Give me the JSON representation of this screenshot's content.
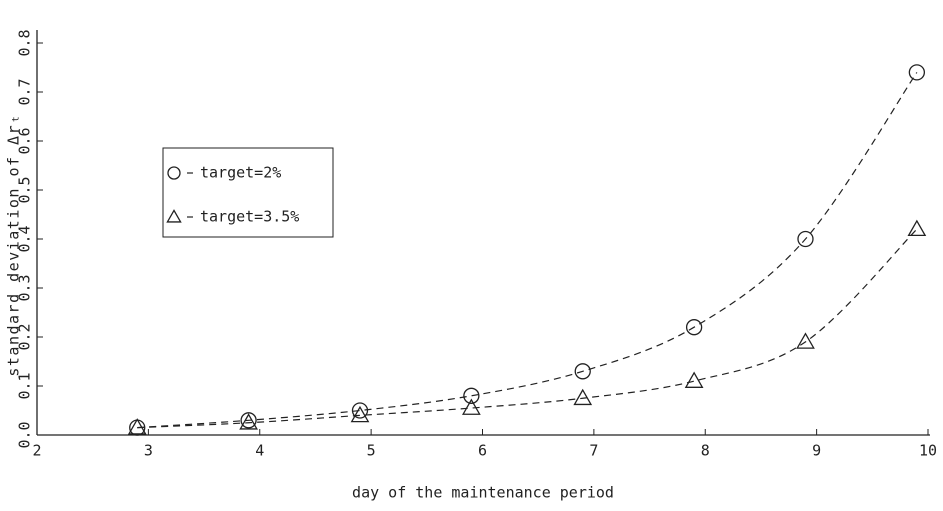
{
  "chart_data": {
    "type": "line",
    "x_label": "day of the maintenance period",
    "y_label": "standard deviation of Δrₜ",
    "x": [
      2.9,
      3.9,
      4.9,
      5.9,
      6.9,
      7.9,
      8.9,
      9.9
    ],
    "series": [
      {
        "name": "target=2%",
        "marker": "circle",
        "color": "#222",
        "values": [
          0.015,
          0.03,
          0.05,
          0.08,
          0.13,
          0.22,
          0.4,
          0.74
        ]
      },
      {
        "name": "target=3.5%",
        "marker": "triangle",
        "color": "#222",
        "values": [
          0.015,
          0.025,
          0.04,
          0.055,
          0.075,
          0.11,
          0.19,
          0.42
        ]
      }
    ],
    "xlim": [
      2,
      10
    ],
    "xticks": [
      2,
      3,
      4,
      5,
      6,
      7,
      8,
      9,
      10
    ],
    "ylim": [
      0,
      0.8
    ],
    "yticks": [
      {
        "value": 0,
        "label": "0.0"
      },
      0.1,
      0.2,
      0.3,
      0.4,
      0.5,
      0.6,
      0.7,
      0.8
    ],
    "line_style": "dashed",
    "grid": false
  }
}
